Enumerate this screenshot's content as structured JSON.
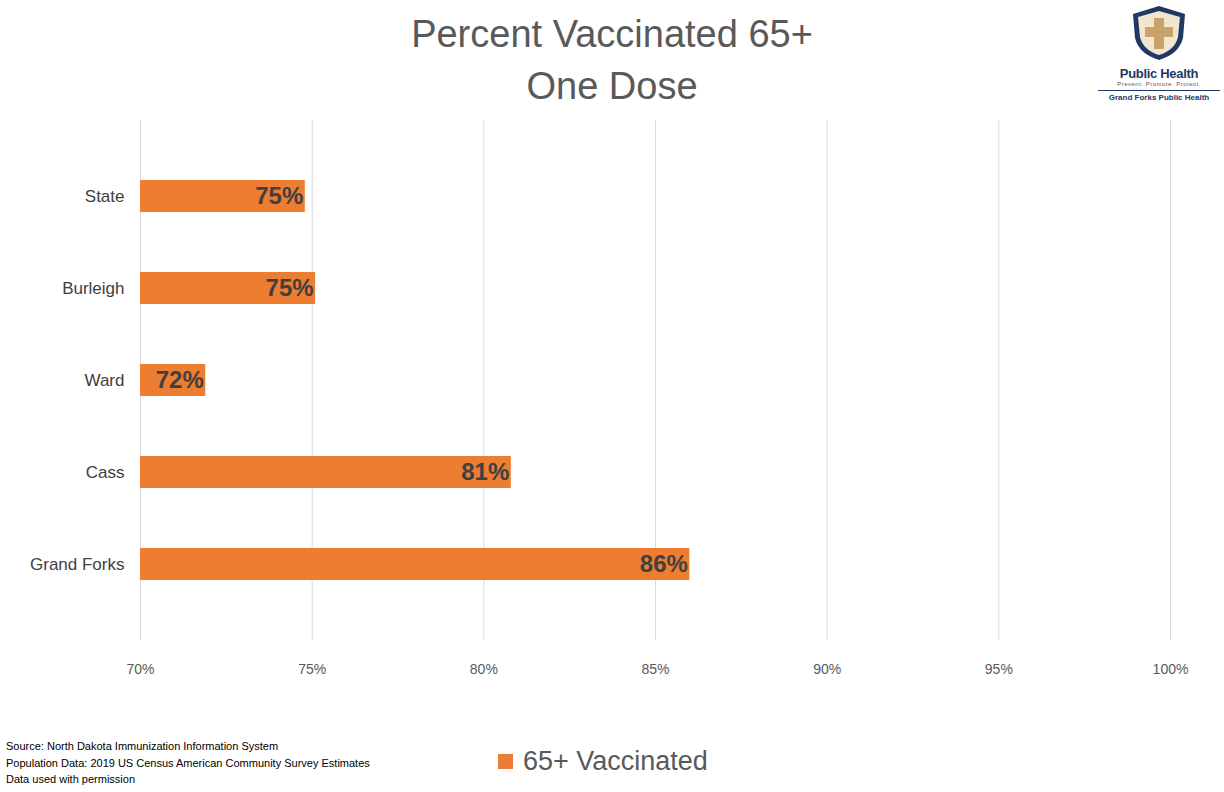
{
  "chart_data": {
    "type": "bar",
    "orientation": "horizontal",
    "title": "Percent Vaccinated 65+",
    "subtitle": "One Dose",
    "categories": [
      "State",
      "Burleigh",
      "Ward",
      "Cass",
      "Grand Forks"
    ],
    "series": [
      {
        "name": "65+ Vaccinated",
        "color": "#ed7d31",
        "values": [
          74.8,
          75.1,
          71.9,
          80.8,
          86.0
        ],
        "value_labels": [
          "75%",
          "75%",
          "72%",
          "81%",
          "86%"
        ]
      }
    ],
    "xlim": [
      70,
      100
    ],
    "xticks": [
      {
        "value": 70,
        "label": "70%"
      },
      {
        "value": 75,
        "label": "75%"
      },
      {
        "value": 80,
        "label": "80%"
      },
      {
        "value": 85,
        "label": "85%"
      },
      {
        "value": 90,
        "label": "90%"
      },
      {
        "value": 95,
        "label": "95%"
      },
      {
        "value": 100,
        "label": "100%"
      }
    ],
    "grid": true,
    "legend": "bottom",
    "data_labels": true,
    "notes": [
      "Source: North Dakota Immunization Information System",
      "Population Data: 2019 US Census American Community Survey Estimates",
      "Data used with permission"
    ],
    "logo": {
      "name": "Public Health",
      "motto": "Prevent. Promote. Protect.",
      "org": "Grand Forks Public Health"
    }
  }
}
